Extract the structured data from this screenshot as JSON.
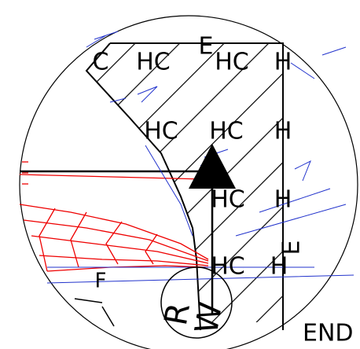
{
  "drawing": {
    "labels": [
      "C",
      "HC",
      "E",
      "HC",
      "H",
      "HC",
      "HC",
      "H",
      "HC",
      "H",
      "HC",
      "H",
      "F",
      "E",
      "R",
      "W",
      "END"
    ]
  }
}
